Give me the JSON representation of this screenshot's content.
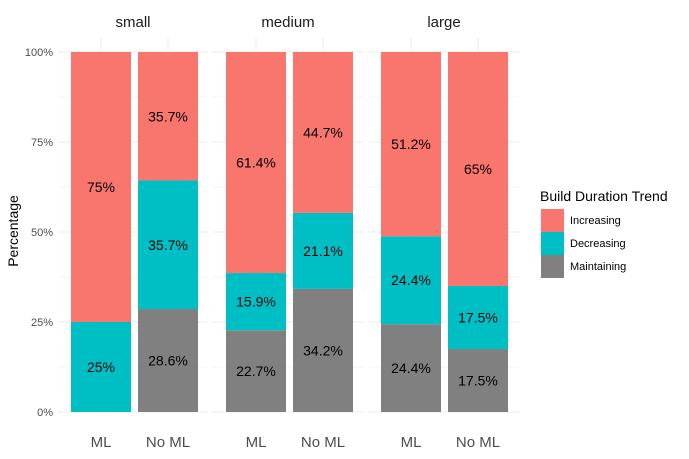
{
  "chart_data": {
    "type": "bar",
    "stacked": true,
    "facet_labels": [
      "small",
      "medium",
      "large"
    ],
    "categories": [
      "ML",
      "No ML"
    ],
    "ylabel": "Percentage",
    "ylim": [
      0,
      100
    ],
    "y_ticks": [
      0,
      25,
      50,
      75,
      100
    ],
    "y_tick_labels": [
      "0%",
      "25%",
      "50%",
      "75%",
      "100%"
    ],
    "legend": {
      "title": "Build Duration Trend",
      "position": "right",
      "entries": [
        "Increasing",
        "Decreasing",
        "Maintaining"
      ]
    },
    "colors": {
      "Increasing": "#F8766D",
      "Decreasing": "#00BFC4",
      "Maintaining": "#808080"
    },
    "facets": [
      {
        "name": "small",
        "bars": [
          {
            "category": "ML",
            "values": {
              "Maintaining": 0,
              "Decreasing": 25,
              "Increasing": 75
            },
            "labels": {
              "Decreasing": "25%",
              "Increasing": "75%"
            }
          },
          {
            "category": "No ML",
            "values": {
              "Maintaining": 28.6,
              "Decreasing": 35.7,
              "Increasing": 35.7
            },
            "labels": {
              "Maintaining": "28.6%",
              "Decreasing": "35.7%",
              "Increasing": "35.7%"
            }
          }
        ]
      },
      {
        "name": "medium",
        "bars": [
          {
            "category": "ML",
            "values": {
              "Maintaining": 22.7,
              "Decreasing": 15.9,
              "Increasing": 61.4
            },
            "labels": {
              "Maintaining": "22.7%",
              "Decreasing": "15.9%",
              "Increasing": "61.4%"
            }
          },
          {
            "category": "No ML",
            "values": {
              "Maintaining": 34.2,
              "Decreasing": 21.1,
              "Increasing": 44.7
            },
            "labels": {
              "Maintaining": "34.2%",
              "Decreasing": "21.1%",
              "Increasing": "44.7%"
            }
          }
        ]
      },
      {
        "name": "large",
        "bars": [
          {
            "category": "ML",
            "values": {
              "Maintaining": 24.4,
              "Decreasing": 24.4,
              "Increasing": 51.2
            },
            "labels": {
              "Maintaining": "24.4%",
              "Decreasing": "24.4%",
              "Increasing": "51.2%"
            }
          },
          {
            "category": "No ML",
            "values": {
              "Maintaining": 17.5,
              "Decreasing": 17.5,
              "Increasing": 65
            },
            "labels": {
              "Maintaining": "17.5%",
              "Decreasing": "17.5%",
              "Increasing": "65%"
            }
          }
        ]
      }
    ]
  }
}
